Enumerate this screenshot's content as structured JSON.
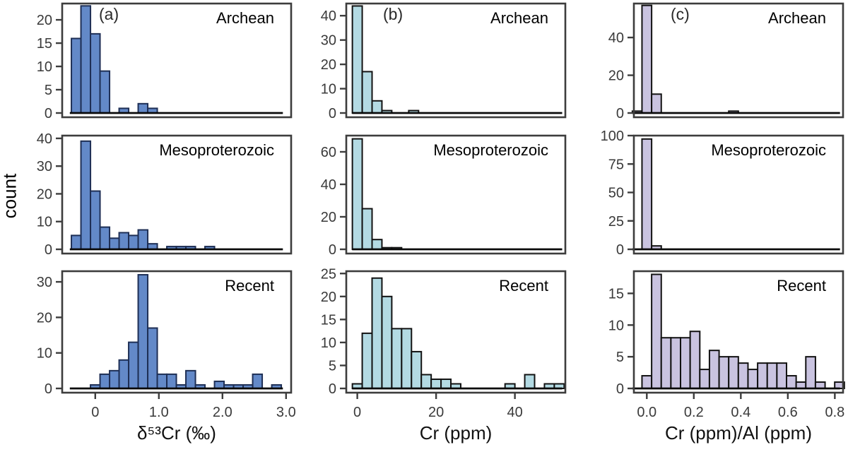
{
  "figure": {
    "background": "#ffffff",
    "border_color": "#3d3d3d",
    "tick_color": "#3d3d3d",
    "baseline_color": "#0a0a0a"
  },
  "chart_data": {
    "type": "bar",
    "subtype": "histogram-small-multiples",
    "title": "",
    "ylabel": "count",
    "grid": "off",
    "legend": "none",
    "rows": [
      "Archean",
      "Mesoproterozoic",
      "Recent"
    ],
    "columns": [
      {
        "id": "a",
        "panel_label": "(a)",
        "xlabel": "δ⁵³Cr (‰)",
        "fill": "#6389c8",
        "edge": "#1e2f55",
        "xlim": [
          -0.52,
          3.08
        ],
        "xticks": [
          0,
          1.0,
          2.0,
          3.0
        ],
        "xtick_labels": [
          "0",
          "1.0",
          "2.0",
          "3.0"
        ],
        "bin_width": 0.15,
        "baseline_span": [
          -0.4,
          2.95
        ]
      },
      {
        "id": "b",
        "panel_label": "(b)",
        "xlabel": "Cr (ppm)",
        "fill": "#b3dae3",
        "edge": "#121212",
        "xlim": [
          -2.8,
          52.8
        ],
        "xticks": [
          0,
          20,
          40
        ],
        "xtick_labels": [
          "0",
          "20",
          "40"
        ],
        "bin_width": 2.5,
        "baseline_span": [
          -1.3,
          52.0
        ]
      },
      {
        "id": "c",
        "panel_label": "(c)",
        "xlabel": "Cr (ppm)/Al (ppm)",
        "fill": "#c9c3e0",
        "edge": "#121212",
        "xlim": [
          -0.055,
          0.835
        ],
        "xticks": [
          0.0,
          0.2,
          0.4,
          0.6,
          0.8
        ],
        "xtick_labels": [
          "0.0",
          "0.2",
          "0.4",
          "0.6",
          "0.8"
        ],
        "bin_width": 0.041,
        "baseline_span": [
          -0.062,
          0.822
        ]
      }
    ],
    "panels": [
      {
        "row": "Archean",
        "col": "a",
        "ylim": 23.5,
        "yticks": [
          0,
          5,
          10,
          15,
          20
        ],
        "bars": [
          [
            -0.3,
            16
          ],
          [
            -0.15,
            23
          ],
          [
            0.0,
            17
          ],
          [
            0.15,
            9
          ],
          [
            0.45,
            1
          ],
          [
            0.75,
            2
          ],
          [
            0.9,
            1
          ]
        ]
      },
      {
        "row": "Mesoproterozoic",
        "col": "a",
        "ylim": 41,
        "yticks": [
          0,
          10,
          20,
          30,
          40
        ],
        "bars": [
          [
            -0.3,
            5
          ],
          [
            -0.15,
            39
          ],
          [
            0.0,
            21
          ],
          [
            0.15,
            8
          ],
          [
            0.3,
            4
          ],
          [
            0.45,
            6
          ],
          [
            0.6,
            5
          ],
          [
            0.75,
            7
          ],
          [
            0.9,
            2
          ],
          [
            1.2,
            1
          ],
          [
            1.35,
            1
          ],
          [
            1.5,
            1
          ],
          [
            1.8,
            1
          ]
        ]
      },
      {
        "row": "Recent",
        "col": "a",
        "ylim": 33,
        "yticks": [
          0,
          10,
          20,
          30
        ],
        "bars": [
          [
            0.0,
            1
          ],
          [
            0.15,
            4
          ],
          [
            0.3,
            5
          ],
          [
            0.45,
            8
          ],
          [
            0.6,
            13
          ],
          [
            0.75,
            32
          ],
          [
            0.9,
            17
          ],
          [
            1.05,
            4
          ],
          [
            1.2,
            4
          ],
          [
            1.35,
            1
          ],
          [
            1.5,
            5
          ],
          [
            1.65,
            1
          ],
          [
            1.95,
            2
          ],
          [
            2.1,
            1
          ],
          [
            2.25,
            1
          ],
          [
            2.4,
            1
          ],
          [
            2.55,
            4
          ],
          [
            2.85,
            1
          ]
        ]
      },
      {
        "row": "Archean",
        "col": "b",
        "ylim": 45,
        "yticks": [
          0,
          10,
          20,
          30,
          40
        ],
        "bars": [
          [
            0,
            44
          ],
          [
            2.5,
            17
          ],
          [
            5,
            5
          ],
          [
            7.5,
            1
          ],
          [
            14.3,
            1
          ]
        ]
      },
      {
        "row": "Mesoproterozoic",
        "col": "b",
        "ylim": 70,
        "yticks": [
          0,
          20,
          40,
          60
        ],
        "bars": [
          [
            0,
            68
          ],
          [
            2.5,
            25
          ],
          [
            5,
            6
          ],
          [
            7.5,
            1
          ],
          [
            10,
            1
          ]
        ]
      },
      {
        "row": "Recent",
        "col": "b",
        "ylim": 25.5,
        "yticks": [
          0,
          5,
          10,
          15,
          20,
          25
        ],
        "bars": [
          [
            0,
            1
          ],
          [
            2.5,
            12
          ],
          [
            5,
            24
          ],
          [
            7.5,
            20
          ],
          [
            10,
            13
          ],
          [
            12.5,
            13
          ],
          [
            15,
            8
          ],
          [
            17.5,
            3
          ],
          [
            20,
            2
          ],
          [
            22.5,
            2
          ],
          [
            25,
            1
          ],
          [
            38.75,
            1
          ],
          [
            43.75,
            3
          ],
          [
            48.75,
            1
          ],
          [
            51.25,
            1
          ]
        ]
      },
      {
        "row": "Archean",
        "col": "c",
        "ylim": 58,
        "yticks": [
          0,
          20,
          40
        ],
        "bars": [
          [
            -0.041,
            1
          ],
          [
            0.0,
            57
          ],
          [
            0.041,
            10
          ],
          [
            0.369,
            1
          ]
        ]
      },
      {
        "row": "Mesoproterozoic",
        "col": "c",
        "ylim": 100,
        "yticks": [
          0,
          25,
          50,
          75,
          100
        ],
        "bars": [
          [
            0.0,
            97
          ],
          [
            0.041,
            3
          ]
        ]
      },
      {
        "row": "Recent",
        "col": "c",
        "ylim": 18.5,
        "yticks": [
          0,
          5,
          10,
          15
        ],
        "bars": [
          [
            0.0,
            2
          ],
          [
            0.041,
            18
          ],
          [
            0.082,
            8
          ],
          [
            0.123,
            8
          ],
          [
            0.164,
            8
          ],
          [
            0.205,
            9
          ],
          [
            0.246,
            3
          ],
          [
            0.287,
            6
          ],
          [
            0.328,
            5
          ],
          [
            0.369,
            5
          ],
          [
            0.41,
            4
          ],
          [
            0.451,
            3
          ],
          [
            0.492,
            4
          ],
          [
            0.533,
            4
          ],
          [
            0.574,
            4
          ],
          [
            0.615,
            2
          ],
          [
            0.656,
            1
          ],
          [
            0.697,
            5
          ],
          [
            0.738,
            1
          ],
          [
            0.82,
            1
          ]
        ]
      }
    ]
  }
}
